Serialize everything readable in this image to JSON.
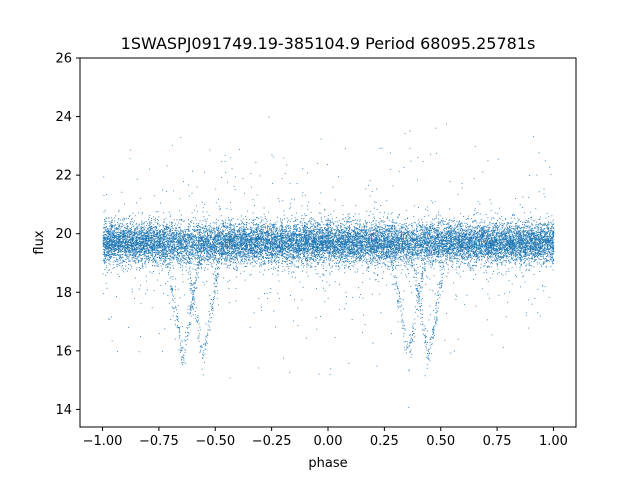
{
  "chart_data": {
    "type": "scatter",
    "title": "1SWASPJ091749.19-385104.9 Period 68095.25781s",
    "xlabel": "phase",
    "ylabel": "flux",
    "xlim": [
      -1.1,
      1.1
    ],
    "ylim": [
      13.4,
      26.0
    ],
    "xticks": [
      -1.0,
      -0.75,
      -0.5,
      -0.25,
      0.0,
      0.25,
      0.5,
      0.75,
      1.0
    ],
    "xtick_labels": [
      "−1.00",
      "−0.75",
      "−0.50",
      "−0.25",
      "0.00",
      "0.25",
      "0.50",
      "0.75",
      "1.00"
    ],
    "yticks": [
      14,
      16,
      18,
      20,
      22,
      24,
      26
    ],
    "ytick_labels": [
      "14",
      "16",
      "18",
      "20",
      "22",
      "24",
      "26"
    ],
    "grid": false,
    "point_color": "#1f77b4",
    "series": [
      {
        "baseline_flux": 19.7,
        "scatter_sigma": 0.35,
        "points_per_cycle": 9000,
        "eclipses": [
          {
            "phase_center": -0.645,
            "depth": 3.9,
            "halfwidth": 0.085
          },
          {
            "phase_center": -0.555,
            "depth": 3.9,
            "halfwidth": 0.085
          },
          {
            "phase_center": 0.355,
            "depth": 3.9,
            "halfwidth": 0.085
          },
          {
            "phase_center": 0.445,
            "depth": 3.9,
            "halfwidth": 0.085
          }
        ],
        "outliers_fraction": 0.04,
        "outliers_range": [
          14.0,
          25.5
        ]
      }
    ]
  }
}
